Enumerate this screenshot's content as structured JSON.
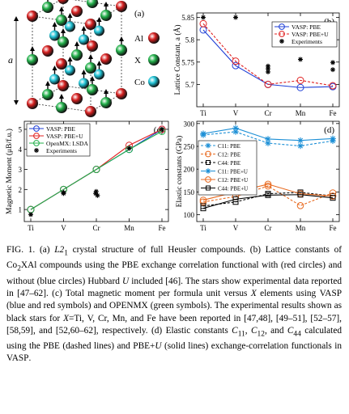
{
  "panel_a": {
    "label": "(a)",
    "axis_label": "a",
    "legend": [
      {
        "name": "Al",
        "color": "#d62020"
      },
      {
        "name": "X",
        "color": "#22b04a"
      },
      {
        "name": "Co",
        "color": "#20c3d6"
      }
    ]
  },
  "chart_data": [
    {
      "panel": "(b)",
      "type": "line",
      "categories": [
        "Ti",
        "V",
        "Cr",
        "Mn",
        "Fe"
      ],
      "ylabel": "Lattice Constant, a (Å)",
      "ylim": [
        5.65,
        5.86
      ],
      "yticks": [
        5.7,
        5.75,
        5.8,
        5.85
      ],
      "legend_placement": "top-right",
      "series": [
        {
          "name": "VASP: PBE",
          "color": "#1f3fd6",
          "dash": false,
          "values": [
            5.822,
            5.742,
            5.7,
            5.693,
            5.695
          ]
        },
        {
          "name": "VASP: PBE+U",
          "color": "#e02020",
          "dash": true,
          "values": [
            5.836,
            5.752,
            5.7,
            5.709,
            5.697
          ]
        },
        {
          "name": "Experiments",
          "color": "#000000",
          "marker": "star",
          "points": [
            [
              0,
              5.85
            ],
            [
              1,
              5.85
            ],
            [
              2,
              5.735
            ],
            [
              2,
              5.741
            ],
            [
              2,
              5.728
            ],
            [
              3,
              5.756
            ],
            [
              4,
              5.749
            ],
            [
              4,
              5.733
            ]
          ]
        }
      ]
    },
    {
      "panel": "(c)",
      "type": "line",
      "categories": [
        "Ti",
        "V",
        "Cr",
        "Mn",
        "Fe"
      ],
      "ylabel": "Magnetic Moment (μB/f.u.)",
      "ylim": [
        0.4,
        5.4
      ],
      "yticks": [
        1,
        2,
        3,
        4,
        5
      ],
      "legend_placement": "top-left",
      "series": [
        {
          "name": "VASP: PBE",
          "color": "#1f3fd6",
          "values": [
            1.0,
            2.0,
            3.0,
            4.0,
            5.0
          ]
        },
        {
          "name": "VASP: PBE+U",
          "color": "#e02020",
          "values": [
            1.0,
            2.0,
            3.0,
            4.2,
            5.0
          ]
        },
        {
          "name": "OpenMX: LSDA",
          "color": "#22b04a",
          "values": [
            1.0,
            2.0,
            3.0,
            4.0,
            4.9
          ]
        },
        {
          "name": "Experiments",
          "color": "#000000",
          "marker": "star",
          "points": [
            [
              0,
              0.75
            ],
            [
              1,
              1.8
            ],
            [
              1,
              1.85
            ],
            [
              2,
              1.7
            ],
            [
              2,
              1.8
            ],
            [
              2,
              1.9
            ],
            [
              3,
              4.05
            ],
            [
              4,
              5.0
            ]
          ]
        }
      ]
    },
    {
      "panel": "(d)",
      "type": "line",
      "categories": [
        "Ti",
        "V",
        "Cr",
        "Mn",
        "Fe"
      ],
      "ylabel": "Elastic constants (GPa)",
      "ylim": [
        85,
        305
      ],
      "yticks": [
        100,
        150,
        200,
        250,
        300
      ],
      "legend_placement": "left",
      "series": [
        {
          "name": "C11: PBE",
          "color": "#1c8fd6",
          "marker": "star",
          "dash": true,
          "values": [
            275,
            282,
            257,
            251,
            262
          ]
        },
        {
          "name": "C12: PBE",
          "color": "#e86a20",
          "marker": "circle",
          "dash": true,
          "values": [
            128,
            140,
            163,
            120,
            148
          ]
        },
        {
          "name": "C44: PBE",
          "color": "#000000",
          "marker": "square",
          "dash": true,
          "values": [
            119,
            128,
            146,
            149,
            141
          ]
        },
        {
          "name": "C11: PBE+U",
          "color": "#1c8fd6",
          "marker": "star",
          "dash": false,
          "values": [
            278,
            290,
            266,
            263,
            267
          ]
        },
        {
          "name": "C12: PBE+U",
          "color": "#e86a20",
          "marker": "circle",
          "dash": false,
          "values": [
            132,
            150,
            167,
            146,
            141
          ]
        },
        {
          "name": "C44: PBE+U",
          "color": "#000000",
          "marker": "square",
          "dash": false,
          "values": [
            114,
            134,
            143,
            144,
            137
          ]
        }
      ]
    }
  ],
  "caption": {
    "prefix": "FIG. 1. (a) ",
    "l21": "L2",
    "l21_sub": "1",
    "p1": " crystal structure of full Heusler compounds. (b) Lattice constants of Co",
    "co_sub": "2",
    "p2": "XAl compounds using the PBE exchange correlation functional with (red circles) and without (blue circles) Hubbard ",
    "u1": "U",
    "p3": " included [46]. The stars show experimental data reported in [47–62]. (c) Total magnetic moment per formula unit versus ",
    "x1": "X",
    "p4": " elements using ",
    "vasp1": "VASP",
    "p5": " (blue and red symbols) and ",
    "openmx": "OPENMX",
    "p6": " (green symbols). The experimental results shown as black stars for ",
    "x2": "X",
    "p7": "=Ti, V, Cr, Mn, and Fe have been reported in [47,48], [49–51], [52–57], [58,59], and [52,60–62], respectively. (d) Elastic constants ",
    "c11": "C",
    "c11_sub": "11",
    "p8": ", ",
    "c12": "C",
    "c12_sub": "12",
    "p9": ", and ",
    "c44": "C",
    "c44_sub": "44",
    "p10": " calculated using the PBE (dashed lines) and PBE+",
    "u2": "U",
    "p11": " (solid lines) exchange-correlation functionals in ",
    "vasp2": "VASP",
    "p12": "."
  }
}
